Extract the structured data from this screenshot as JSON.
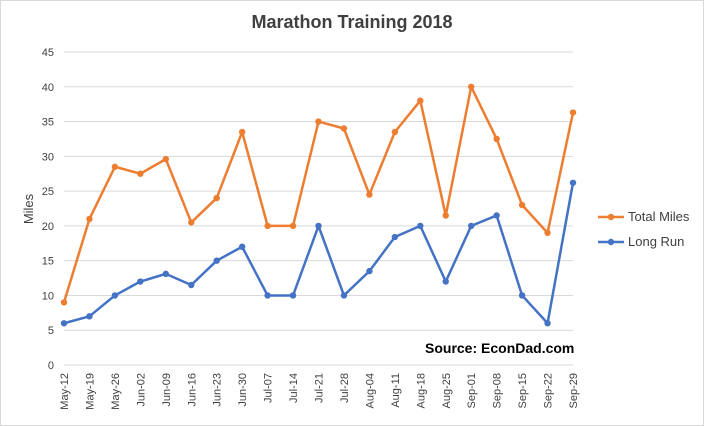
{
  "chart_data": {
    "type": "line",
    "title": "Marathon Training 2018",
    "xlabel": "",
    "ylabel": "Miles",
    "ylim": [
      0,
      45
    ],
    "yticks": [
      0,
      5,
      10,
      15,
      20,
      25,
      30,
      35,
      40,
      45
    ],
    "categories": [
      "May-12",
      "May-19",
      "May-26",
      "Jun-02",
      "Jun-09",
      "Jun-16",
      "Jun-23",
      "Jun-30",
      "Jul-07",
      "Jul-14",
      "Jul-21",
      "Jul-28",
      "Aug-04",
      "Aug-11",
      "Aug-18",
      "Aug-25",
      "Sep-01",
      "Sep-08",
      "Sep-15",
      "Sep-22",
      "Sep-29"
    ],
    "series": [
      {
        "name": "Total Miles",
        "color": "#ED7D31",
        "values": [
          9,
          21,
          28.5,
          27.5,
          29.6,
          20.5,
          24,
          33.5,
          20,
          20,
          35,
          34,
          24.5,
          33.5,
          38,
          21.5,
          40,
          32.5,
          23,
          19,
          36.3
        ]
      },
      {
        "name": "Long Run",
        "color": "#4472C4",
        "values": [
          6,
          7,
          10,
          12,
          13.1,
          11.5,
          15,
          17,
          10,
          10,
          20,
          10,
          13.5,
          18.4,
          20,
          12,
          20,
          21.5,
          10,
          6,
          26.2
        ]
      }
    ],
    "grid": true,
    "legend_position": "right",
    "annotation": "Source: EconDad.com"
  }
}
